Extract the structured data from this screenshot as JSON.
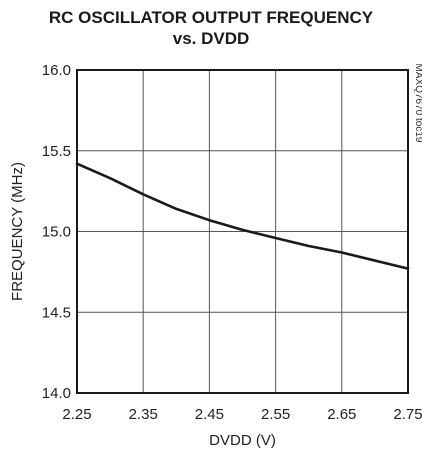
{
  "chart_data": {
    "type": "line",
    "title": "RC OSCILLATOR OUTPUT FREQUENCY",
    "subtitle": "vs. DVDD",
    "xlabel": "DVDD (V)",
    "ylabel": "FREQUENCY (MHz)",
    "xlim": [
      2.25,
      2.75
    ],
    "ylim": [
      14.0,
      16.0
    ],
    "xticks": [
      "2.25",
      "2.35",
      "2.45",
      "2.55",
      "2.65",
      "2.75"
    ],
    "yticks": [
      "14.0",
      "14.5",
      "15.0",
      "15.5",
      "16.0"
    ],
    "grid": true,
    "side_label": "MAXQ7670 toc19",
    "line_color": "#1a1a1a",
    "series": [
      {
        "x": [
          2.25,
          2.3,
          2.35,
          2.4,
          2.45,
          2.5,
          2.55,
          2.6,
          2.65,
          2.7,
          2.75
        ],
        "y": [
          15.42,
          15.33,
          15.23,
          15.14,
          15.07,
          15.01,
          14.96,
          14.91,
          14.87,
          14.82,
          14.77
        ]
      }
    ]
  }
}
